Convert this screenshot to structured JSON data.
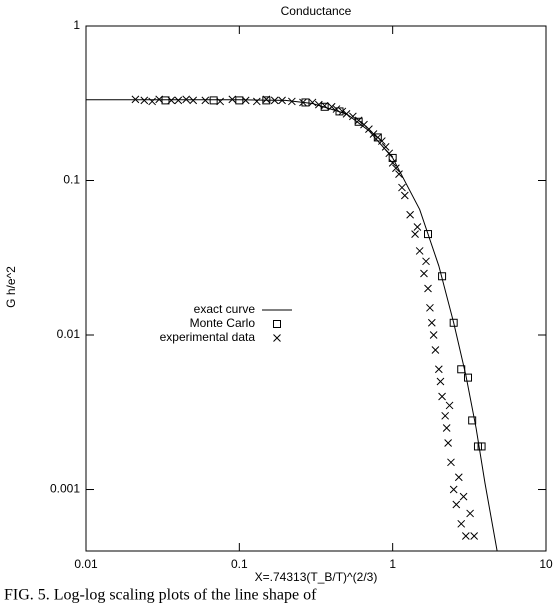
{
  "chart_data": {
    "type": "scatter",
    "title": "Conductance",
    "x_label": "X=.74313(T_B/T)^(2/3)",
    "y_label": "G h/e^2",
    "log_x": true,
    "log_y": true,
    "xlim": [
      0.01,
      10
    ],
    "ylim": [
      0.0004,
      1
    ],
    "xticks": [
      0.01,
      0.1,
      1,
      10
    ],
    "yticks": [
      0.001,
      0.01,
      0.1,
      1
    ],
    "legend": "left",
    "series": [
      {
        "name": "exact curve",
        "kind": "line",
        "color": "#000000",
        "x": [
          0.01,
          0.1,
          0.2,
          0.3,
          0.5,
          0.7,
          1,
          1.5,
          2,
          2.5,
          3,
          3.5,
          4,
          4.8
        ],
        "values": [
          0.333,
          0.333,
          0.33,
          0.315,
          0.27,
          0.21,
          0.14,
          0.065,
          0.028,
          0.012,
          0.0055,
          0.0025,
          0.0011,
          0.0004
        ]
      },
      {
        "name": "Monte Carlo",
        "kind": "square",
        "color": "#000000",
        "x": [
          0.033,
          0.068,
          0.1,
          0.15,
          0.27,
          0.36,
          0.45,
          0.6,
          0.8,
          1.0,
          1.7,
          2.1,
          2.5,
          2.8,
          3.1,
          3.3,
          3.6,
          3.8
        ],
        "values": [
          0.33,
          0.33,
          0.33,
          0.33,
          0.32,
          0.3,
          0.28,
          0.24,
          0.19,
          0.14,
          0.045,
          0.024,
          0.012,
          0.006,
          0.0053,
          0.0028,
          0.0019,
          0.0019
        ]
      },
      {
        "name": "experimental data",
        "kind": "cross",
        "color": "#000000",
        "x": [
          0.021,
          0.024,
          0.027,
          0.03,
          0.036,
          0.04,
          0.045,
          0.05,
          0.06,
          0.075,
          0.09,
          0.11,
          0.13,
          0.15,
          0.17,
          0.19,
          0.22,
          0.26,
          0.3,
          0.33,
          0.36,
          0.4,
          0.43,
          0.47,
          0.5,
          0.55,
          0.6,
          0.65,
          0.7,
          0.75,
          0.8,
          0.85,
          0.9,
          0.95,
          1.0,
          1.05,
          1.1,
          1.15,
          1.2,
          1.3,
          1.4,
          1.45,
          1.5,
          1.6,
          1.65,
          1.7,
          1.75,
          1.8,
          1.85,
          1.9,
          2.0,
          2.05,
          2.1,
          2.2,
          2.25,
          2.3,
          2.35,
          2.4,
          2.5,
          2.6,
          2.7,
          2.8,
          2.9,
          3.0,
          3.2,
          3.4
        ],
        "values": [
          0.335,
          0.33,
          0.325,
          0.335,
          0.33,
          0.33,
          0.335,
          0.33,
          0.33,
          0.325,
          0.335,
          0.33,
          0.325,
          0.335,
          0.33,
          0.33,
          0.325,
          0.32,
          0.32,
          0.31,
          0.305,
          0.3,
          0.29,
          0.28,
          0.27,
          0.26,
          0.245,
          0.23,
          0.215,
          0.2,
          0.19,
          0.18,
          0.165,
          0.15,
          0.13,
          0.12,
          0.11,
          0.09,
          0.08,
          0.06,
          0.045,
          0.05,
          0.035,
          0.025,
          0.03,
          0.02,
          0.015,
          0.012,
          0.01,
          0.008,
          0.006,
          0.005,
          0.004,
          0.003,
          0.0025,
          0.002,
          0.0035,
          0.0015,
          0.001,
          0.0008,
          0.0012,
          0.0006,
          0.0009,
          0.0005,
          0.0007,
          0.0005
        ]
      }
    ]
  },
  "caption": "FIG. 5.   Log-log scaling plots of the line shape of"
}
